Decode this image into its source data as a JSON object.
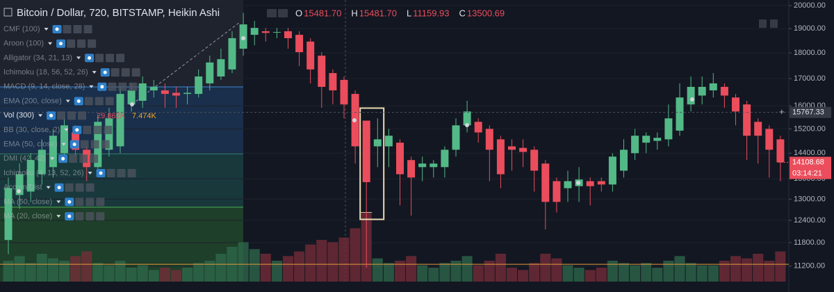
{
  "header": {
    "title": "Bitcoin / Dollar, 720, BITSTAMP, Heikin Ashi",
    "ohlc": [
      {
        "key": "O",
        "value": "15481.70"
      },
      {
        "key": "H",
        "value": "15481.70"
      },
      {
        "key": "L",
        "value": "11159.93"
      },
      {
        "key": "C",
        "value": "13500.69"
      }
    ]
  },
  "chart_data": {
    "type": "candlestick",
    "open": [
      11870,
      13120,
      13220,
      13740,
      13960,
      14400,
      15080,
      14510,
      13960,
      14510,
      14620,
      16050,
      16180,
      16560,
      16560,
      16470,
      16430,
      16430,
      16820,
      17080,
      17350,
      18170,
      18740,
      18890,
      18840,
      18890,
      18740,
      18460,
      17890,
      17210,
      16950,
      16430,
      15481.7,
      14620,
      14620,
      14740,
      14180,
      13960,
      13960,
      13960,
      14510,
      15320,
      15440,
      15200,
      14850,
      14620,
      14570,
      14510,
      14070,
      13530,
      13320,
      13380,
      13530,
      13530,
      13430,
      13850,
      14400,
      14740,
      14800,
      14850,
      15140,
      16050,
      16370,
      16560,
      16690,
      16300,
      16050,
      15440,
      15200,
      14850
    ],
    "high": [
      13640,
      14070,
      14400,
      14850,
      15200,
      15560,
      15320,
      14620,
      15680,
      15930,
      16690,
      16820,
      17080,
      16950,
      16820,
      16690,
      16690,
      17350,
      17890,
      18170,
      18890,
      19680,
      19330,
      19030,
      19030,
      19030,
      18890,
      18600,
      18030,
      17350,
      17080,
      16560,
      15481.7,
      15560,
      15200,
      14850,
      14290,
      14290,
      14180,
      14620,
      15560,
      16180,
      15560,
      15320,
      14970,
      14850,
      14850,
      14620,
      14180,
      13640,
      13850,
      13960,
      13640,
      13640,
      14400,
      14850,
      15200,
      15080,
      15080,
      16050,
      16820,
      17080,
      17080,
      17210,
      16820,
      16430,
      16180,
      15560,
      15320,
      14970
    ],
    "low": [
      11500,
      12720,
      12920,
      13430,
      13640,
      14180,
      14290,
      13530,
      13740,
      14290,
      14400,
      15800,
      15930,
      16300,
      15930,
      15930,
      16050,
      16300,
      16560,
      16950,
      17210,
      17890,
      18310,
      18460,
      18600,
      18170,
      17480,
      16820,
      15930,
      16050,
      15560,
      14070,
      11159.93,
      13960,
      13960,
      12820,
      12530,
      13530,
      13640,
      13640,
      14290,
      15080,
      14740,
      13530,
      13320,
      13850,
      13960,
      13220,
      12150,
      12620,
      12920,
      12920,
      12820,
      13220,
      13220,
      13640,
      14180,
      14400,
      14510,
      14620,
      14970,
      15800,
      16050,
      16300,
      15930,
      15320,
      14180,
      14070,
      13640,
      13530
    ],
    "close": [
      13320,
      13740,
      14180,
      14510,
      14970,
      15320,
      14510,
      13960,
      15440,
      15560,
      16430,
      16560,
      16820,
      16690,
      16430,
      16370,
      16470,
      17080,
      17620,
      17750,
      18600,
      19180,
      19030,
      18820,
      18860,
      18600,
      18030,
      17350,
      16690,
      16560,
      16050,
      14620,
      13500.69,
      14850,
      14970,
      13740,
      13640,
      14070,
      14070,
      14510,
      15320,
      15800,
      15080,
      14510,
      13740,
      14510,
      14440,
      13850,
      12920,
      12920,
      13530,
      13580,
      13380,
      13430,
      14290,
      14510,
      14970,
      14970,
      14900,
      15560,
      16300,
      16690,
      16690,
      16820,
      16370,
      15800,
      14970,
      14970,
      14510,
      14110
    ],
    "volume": [
      9000,
      11000,
      8000,
      12000,
      10000,
      9000,
      11000,
      13000,
      8000,
      7000,
      9000,
      6000,
      7000,
      5000,
      6000,
      5000,
      6000,
      8000,
      9000,
      12000,
      15000,
      17000,
      14000,
      12000,
      9000,
      11000,
      13000,
      16000,
      18000,
      17000,
      19000,
      23000,
      29862,
      10000,
      8000,
      9000,
      11000,
      7000,
      6000,
      8000,
      9000,
      11000,
      7000,
      9000,
      12000,
      6000,
      5000,
      8000,
      12000,
      10000,
      7000,
      6000,
      5000,
      6000,
      9000,
      8000,
      7000,
      8000,
      6000,
      9000,
      11000,
      8000,
      7000,
      7000,
      9000,
      11000,
      10000,
      12000,
      9000,
      13000
    ],
    "up_color": "#53b987",
    "down_color": "#eb4d5c",
    "ylim": [
      10820,
      20250
    ],
    "log_scale": true,
    "yticks": [
      {
        "value": 20000,
        "label": "20000.00"
      },
      {
        "value": 19000,
        "label": "19000.00"
      },
      {
        "value": 18000,
        "label": "18000.00"
      },
      {
        "value": 17000,
        "label": "17000.00"
      },
      {
        "value": 16000,
        "label": "16000.00"
      },
      {
        "value": 15200,
        "label": "15200.00"
      },
      {
        "value": 14400,
        "label": "14400.00"
      },
      {
        "value": 13600,
        "label": "13600.00"
      },
      {
        "value": 13000,
        "label": "13000.00"
      },
      {
        "value": 12400,
        "label": "12400.00"
      },
      {
        "value": 11800,
        "label": "11800.00"
      },
      {
        "value": 11200,
        "label": "11200.00"
      }
    ],
    "crosshair_price": {
      "value": 15767.33,
      "label": "15767.33"
    },
    "last_price": {
      "value": 14108.68,
      "label": "14108.68"
    },
    "countdown": "03:14:21",
    "highlight_index": 32,
    "indicators": [
      "CMF (100)",
      "Aroon (100)",
      "Alligator (34, 21, 13)",
      "Ichimoku (18, 56, 52, 26)",
      "MACD (9, 14, close, 28)",
      "EMA (200, close)",
      "Vol (300)",
      "BB (30, close, 2)",
      "EMA (50, close)",
      "DMI (42, 42)",
      "Ichimoku (4, 13, 52, 26)",
      "Accum/Dist",
      "MA (50, close)",
      "MA (20, close)"
    ],
    "volume_legend": {
      "values": [
        29862,
        7474
      ],
      "value_labels": [
        "29.862K",
        "7.474K"
      ]
    }
  }
}
